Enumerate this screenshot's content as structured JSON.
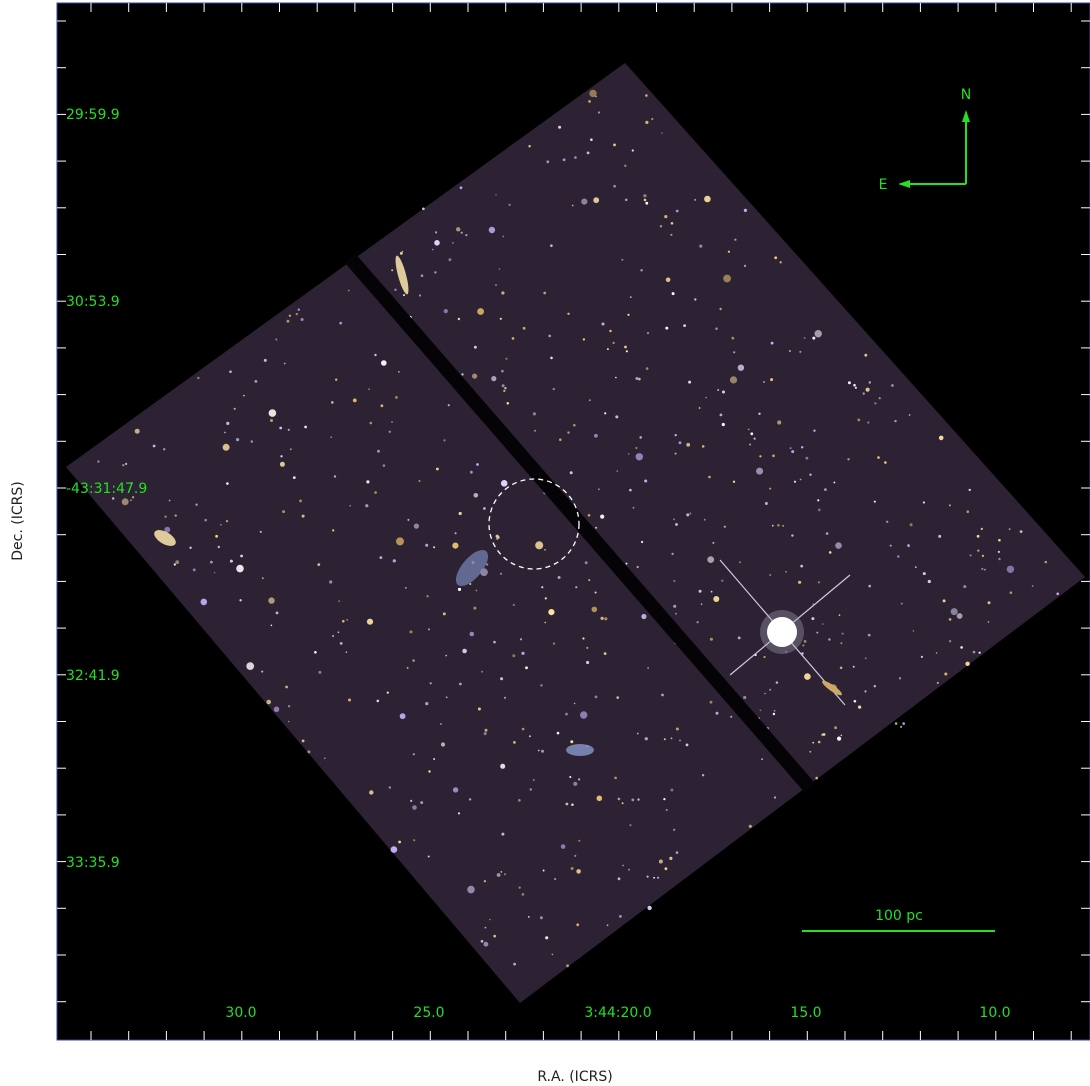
{
  "axes": {
    "x_label": "R.A. (ICRS)",
    "y_label": "Dec. (ICRS)",
    "x_ticks": [
      "30.0",
      "25.0",
      "3:44:20.0",
      "15.0",
      "10.0"
    ],
    "y_ticks": [
      "29:59.9",
      "30:53.9",
      "-43:31:47.9",
      "32:41.9",
      "33:35.9"
    ]
  },
  "compass": {
    "north": "N",
    "east": "E"
  },
  "scale_bar": {
    "label": "100 pc"
  }
}
